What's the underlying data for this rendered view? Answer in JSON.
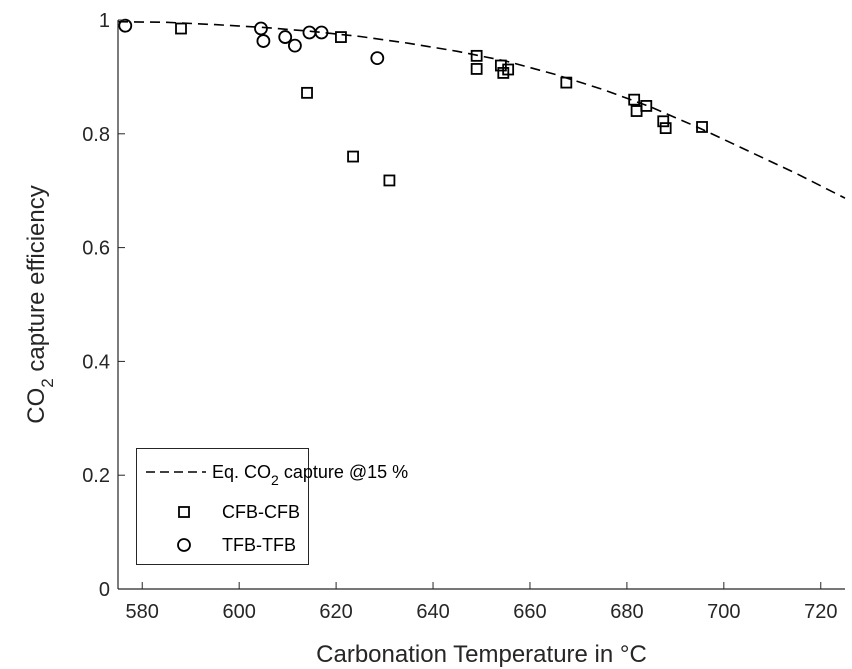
{
  "chart_data": {
    "type": "scatter",
    "xlabel": "Carbonation Temperature in °C",
    "ylabel_main": "CO",
    "ylabel_sub": "2",
    "ylabel_rest": " capture efficiency",
    "xlim": [
      575,
      725
    ],
    "ylim": [
      0,
      1
    ],
    "xticks": [
      580,
      600,
      620,
      640,
      660,
      680,
      700,
      720
    ],
    "xtick_labels": [
      "580",
      "600",
      "620",
      "640",
      "660",
      "680",
      "700",
      "720"
    ],
    "yticks": [
      0,
      0.2,
      0.4,
      0.6,
      0.8,
      1
    ],
    "ytick_labels": [
      "0",
      "0.2",
      "0.4",
      "0.6",
      "0.8",
      "1"
    ],
    "grid": false,
    "legend_position": "bottom-left",
    "series": [
      {
        "name": "Eq. CO2 capture @15 %",
        "legend_main": "Eq. CO",
        "legend_sub": "2",
        "legend_rest": " capture @15 %",
        "style": "dashed-line",
        "color": "#000000",
        "x": [
          575,
          585,
          595,
          605,
          615,
          625,
          635,
          645,
          655,
          665,
          675,
          685,
          695,
          705,
          715,
          725
        ],
        "y": [
          0.997,
          0.996,
          0.992,
          0.987,
          0.98,
          0.971,
          0.959,
          0.945,
          0.928,
          0.905,
          0.878,
          0.847,
          0.81,
          0.77,
          0.73,
          0.687
        ]
      },
      {
        "name": "CFB-CFB",
        "marker": "square",
        "color": "#000000",
        "x": [
          588,
          614,
          621,
          623.5,
          631,
          649,
          649,
          654,
          654.5,
          655.5,
          667.5,
          681.5,
          682,
          684,
          687.5,
          688,
          695.5
        ],
        "y": [
          0.985,
          0.872,
          0.97,
          0.76,
          0.718,
          0.937,
          0.914,
          0.92,
          0.907,
          0.913,
          0.89,
          0.86,
          0.84,
          0.849,
          0.822,
          0.81,
          0.812
        ]
      },
      {
        "name": "TFB-TFB",
        "marker": "circle",
        "color": "#000000",
        "x": [
          576.5,
          604.5,
          605,
          609.5,
          611.5,
          614.5,
          617,
          628.5
        ],
        "y": [
          0.99,
          0.985,
          0.963,
          0.97,
          0.955,
          0.978,
          0.978,
          0.933
        ]
      }
    ]
  }
}
